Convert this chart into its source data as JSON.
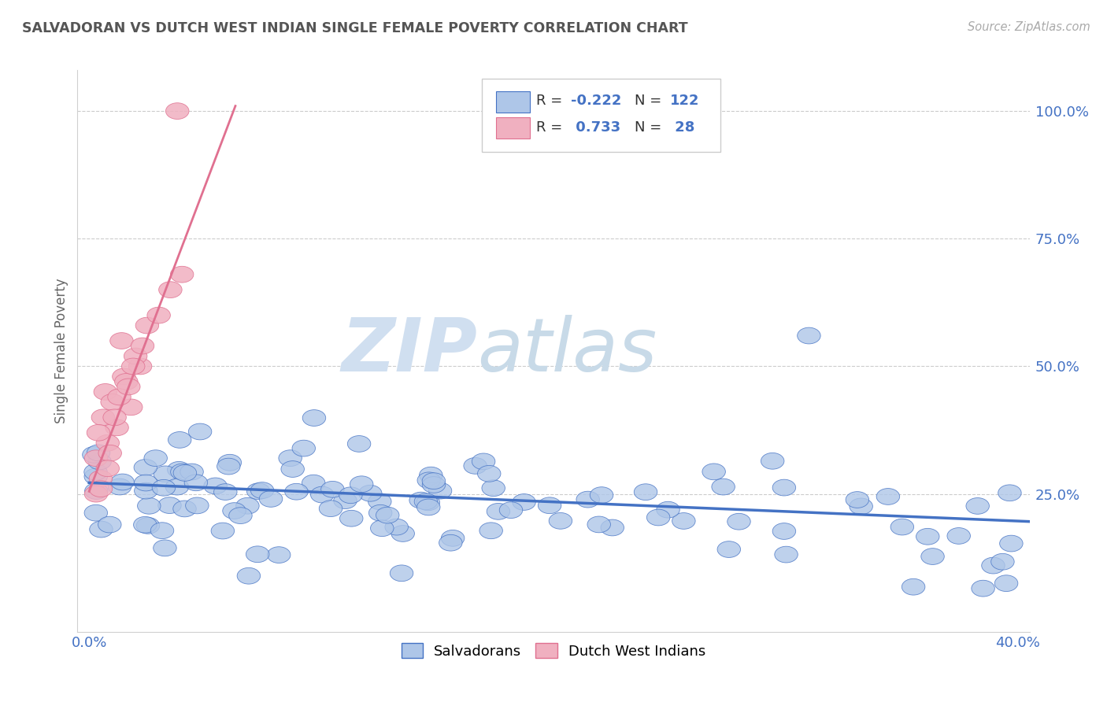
{
  "title": "SALVADORAN VS DUTCH WEST INDIAN SINGLE FEMALE POVERTY CORRELATION CHART",
  "source_text": "Source: ZipAtlas.com",
  "ylabel": "Single Female Poverty",
  "x_tick_labels": [
    "0.0%",
    "",
    "",
    "",
    "40.0%"
  ],
  "x_tick_vals": [
    0.0,
    0.1,
    0.2,
    0.3,
    0.4
  ],
  "y_tick_labels": [
    "25.0%",
    "50.0%",
    "75.0%",
    "100.0%"
  ],
  "y_tick_vals": [
    0.25,
    0.5,
    0.75,
    1.0
  ],
  "xlim": [
    -0.005,
    0.405
  ],
  "ylim": [
    -0.02,
    1.08
  ],
  "blue_line_color": "#4472c4",
  "pink_line_color": "#e07090",
  "watermark_zip": "ZIP",
  "watermark_atlas": "atlas",
  "watermark_color_zip": "#c8d8ee",
  "watermark_color_atlas": "#c8d8ee",
  "background_color": "#ffffff",
  "grid_color": "#cccccc",
  "title_color": "#555555",
  "axis_label_color": "#666666",
  "tick_label_color": "#4472c4",
  "blue_scatter_color": "#aec6e8",
  "pink_scatter_color": "#f0b0c0",
  "blue_scatter_edge": "#4472c4",
  "pink_scatter_edge": "#e07090",
  "sal_R": -0.222,
  "sal_N": 122,
  "dutch_R": 0.733,
  "dutch_N": 28,
  "sal_trend_x0": 0.0,
  "sal_trend_x1": 0.405,
  "sal_trend_y0": 0.272,
  "sal_trend_y1": 0.196,
  "dutch_trend_x0": 0.0,
  "dutch_trend_x1": 0.063,
  "dutch_trend_y0": 0.255,
  "dutch_trend_y1": 1.01
}
